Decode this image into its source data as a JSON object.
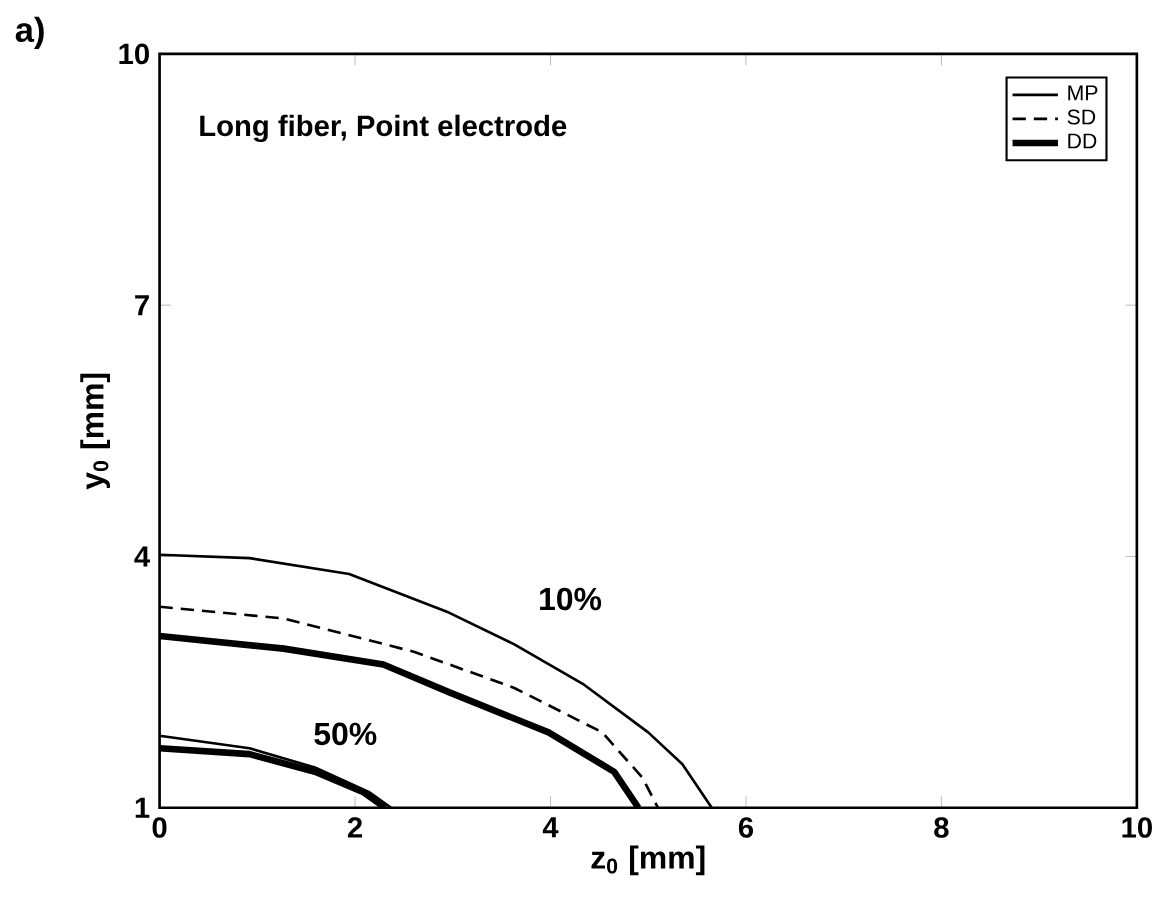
{
  "chart_data": {
    "type": "line",
    "title": "Long fiber, Point electrode",
    "xlabel": "z$_{0}$ [mm]",
    "ylabel": "y$_{0}$ [mm]",
    "xlim": [
      0,
      10
    ],
    "ylim": [
      1,
      10
    ],
    "xticks": [
      0,
      2,
      4,
      6,
      8,
      10
    ],
    "yticks": [
      1,
      4,
      7,
      10
    ],
    "legend": "top right",
    "grid": false,
    "marker": "none",
    "series": [
      {
        "name": "MP",
        "color": "#000000",
        "line_style": "solid",
        "x": [
          0,
          0.92,
          1.94,
          2.96,
          3.63,
          4.33,
          5.0,
          5.35,
          5.65
        ],
        "values": [
          4.02,
          3.98,
          3.79,
          3.33,
          2.95,
          2.48,
          1.9,
          1.52,
          1.0
        ]
      },
      {
        "name": "SD",
        "color": "#000000",
        "line_style": "dashed",
        "x": [
          0,
          1.27,
          2.61,
          3.63,
          4.53,
          4.94,
          5.1
        ],
        "values": [
          3.4,
          3.26,
          2.86,
          2.43,
          1.9,
          1.36,
          1.0
        ]
      },
      {
        "name": "DD",
        "color": "#000000",
        "line_style": "solid",
        "x": [
          0,
          1.27,
          2.29,
          2.96,
          3.98,
          4.65,
          4.9
        ],
        "values": [
          3.05,
          2.9,
          2.71,
          2.38,
          1.9,
          1.43,
          1.0
        ]
      },
      {
        "color": "#000000",
        "line_style": "solid",
        "x": [
          0,
          0.92,
          1.59,
          2.14,
          2.37
        ],
        "values": [
          1.86,
          1.71,
          1.48,
          1.19,
          1.0
        ]
      },
      {
        "color": "#000000",
        "line_style": "solid",
        "x": [
          0,
          0.92,
          1.59,
          2.08,
          2.31
        ],
        "values": [
          1.71,
          1.64,
          1.43,
          1.19,
          1.0
        ]
      }
    ],
    "annotations": [
      "a)",
      "10%",
      "50%"
    ]
  }
}
